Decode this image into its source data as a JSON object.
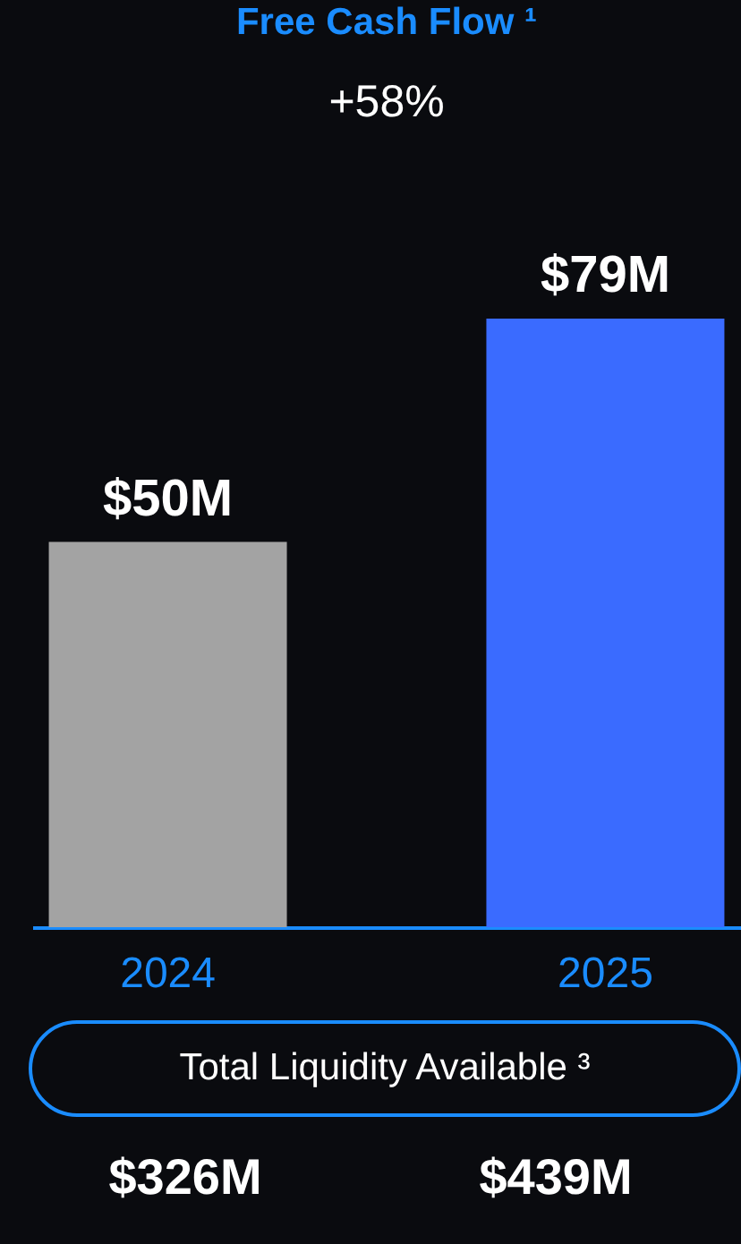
{
  "chart_data": {
    "type": "bar",
    "title": "Free Cash Flow ¹",
    "subtitle": "+58%",
    "categories": [
      "2024",
      "2025"
    ],
    "values": [
      50,
      79
    ],
    "colors": [
      "#a3a3a3",
      "#3a6bff"
    ],
    "value_labels": [
      "$50M",
      "$79M"
    ],
    "annotations": [
      "Total Liquidity Available ³",
      "$326M",
      "$439M"
    ],
    "grid": false
  }
}
